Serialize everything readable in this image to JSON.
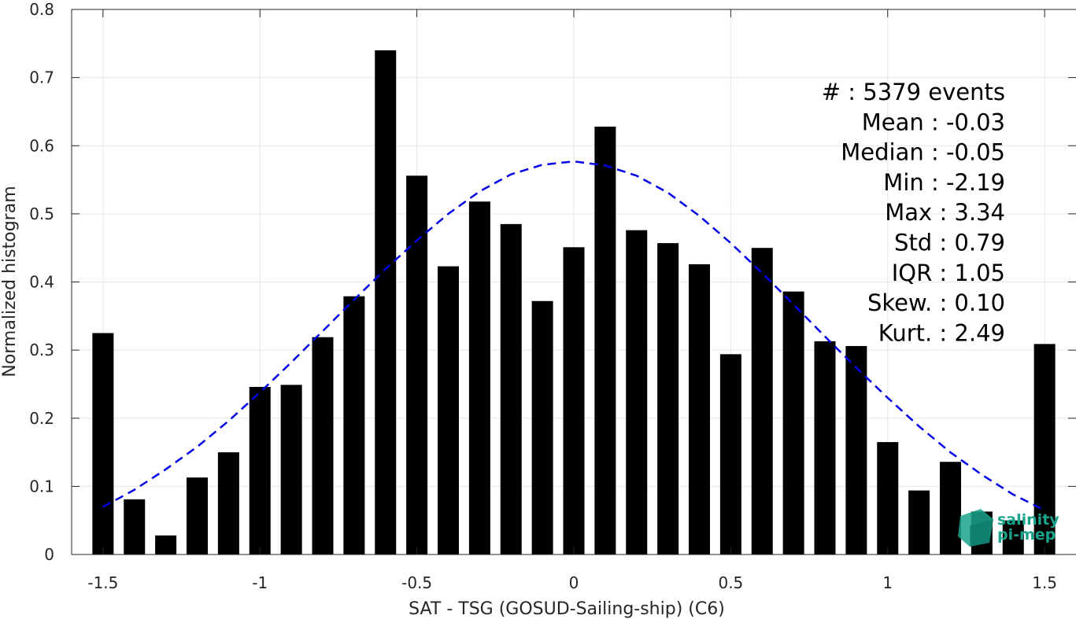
{
  "chart_data": {
    "type": "bar",
    "xlabel": "SAT - TSG (GOSUD-Sailing-ship) (C6)",
    "ylabel": "Normalized histogram",
    "xlim": [
      -1.6,
      1.6
    ],
    "ylim": [
      0,
      0.8
    ],
    "grid": true,
    "x_ticks": [
      -1.5,
      -1,
      -0.5,
      0,
      0.5,
      1,
      1.5
    ],
    "x_tick_labels": [
      "-1.5",
      "-1",
      "-0.5",
      "0",
      "0.5",
      "1",
      "1.5"
    ],
    "y_ticks": [
      0,
      0.1,
      0.2,
      0.3,
      0.4,
      0.5,
      0.6,
      0.7,
      0.8
    ],
    "y_tick_labels": [
      "0",
      "0.1",
      "0.2",
      "0.3",
      "0.4",
      "0.5",
      "0.6",
      "0.7",
      "0.8"
    ],
    "bar_color": "#000000",
    "curve_color": "#0000e6",
    "series": [
      {
        "type": "bar",
        "x": [
          -1.5,
          -1.4,
          -1.3,
          -1.2,
          -1.1,
          -1.0,
          -0.9,
          -0.8,
          -0.7,
          -0.6,
          -0.5,
          -0.4,
          -0.3,
          -0.2,
          -0.1,
          0.0,
          0.1,
          0.2,
          0.3,
          0.4,
          0.5,
          0.6,
          0.7,
          0.8,
          0.9,
          1.0,
          1.1,
          1.2,
          1.3,
          1.4,
          1.5
        ],
        "values": [
          0.325,
          0.081,
          0.028,
          0.113,
          0.15,
          0.246,
          0.249,
          0.319,
          0.379,
          0.74,
          0.556,
          0.423,
          0.518,
          0.485,
          0.372,
          0.451,
          0.628,
          0.476,
          0.457,
          0.426,
          0.294,
          0.45,
          0.386,
          0.313,
          0.306,
          0.165,
          0.094,
          0.136,
          0.063,
          0.05,
          0.309
        ]
      },
      {
        "type": "line",
        "style": "dashed",
        "x": [
          -1.5,
          -1.4,
          -1.3,
          -1.2,
          -1.1,
          -1.0,
          -0.9,
          -0.8,
          -0.7,
          -0.6,
          -0.5,
          -0.4,
          -0.3,
          -0.2,
          -0.1,
          0.0,
          0.1,
          0.2,
          0.3,
          0.4,
          0.5,
          0.6,
          0.7,
          0.8,
          0.9,
          1.0,
          1.1,
          1.2,
          1.3,
          1.4,
          1.5
        ],
        "values": [
          0.07,
          0.095,
          0.125,
          0.158,
          0.196,
          0.238,
          0.282,
          0.328,
          0.374,
          0.419,
          0.461,
          0.5,
          0.533,
          0.558,
          0.572,
          0.577,
          0.571,
          0.556,
          0.531,
          0.497,
          0.457,
          0.413,
          0.367,
          0.32,
          0.274,
          0.23,
          0.188,
          0.15,
          0.117,
          0.088,
          0.065
        ]
      }
    ],
    "annotations": [
      "#  : 5379 events",
      "Mean : -0.03",
      "Median : -0.05",
      "Min : -2.19",
      "Max : 3.34",
      "Std : 0.79",
      "IQR : 1.05",
      "Skew. : 0.10",
      "Kurt. : 2.49"
    ]
  },
  "logo": {
    "line1": "salinity",
    "line2": "pi-mep",
    "color": "#1aa38c"
  }
}
